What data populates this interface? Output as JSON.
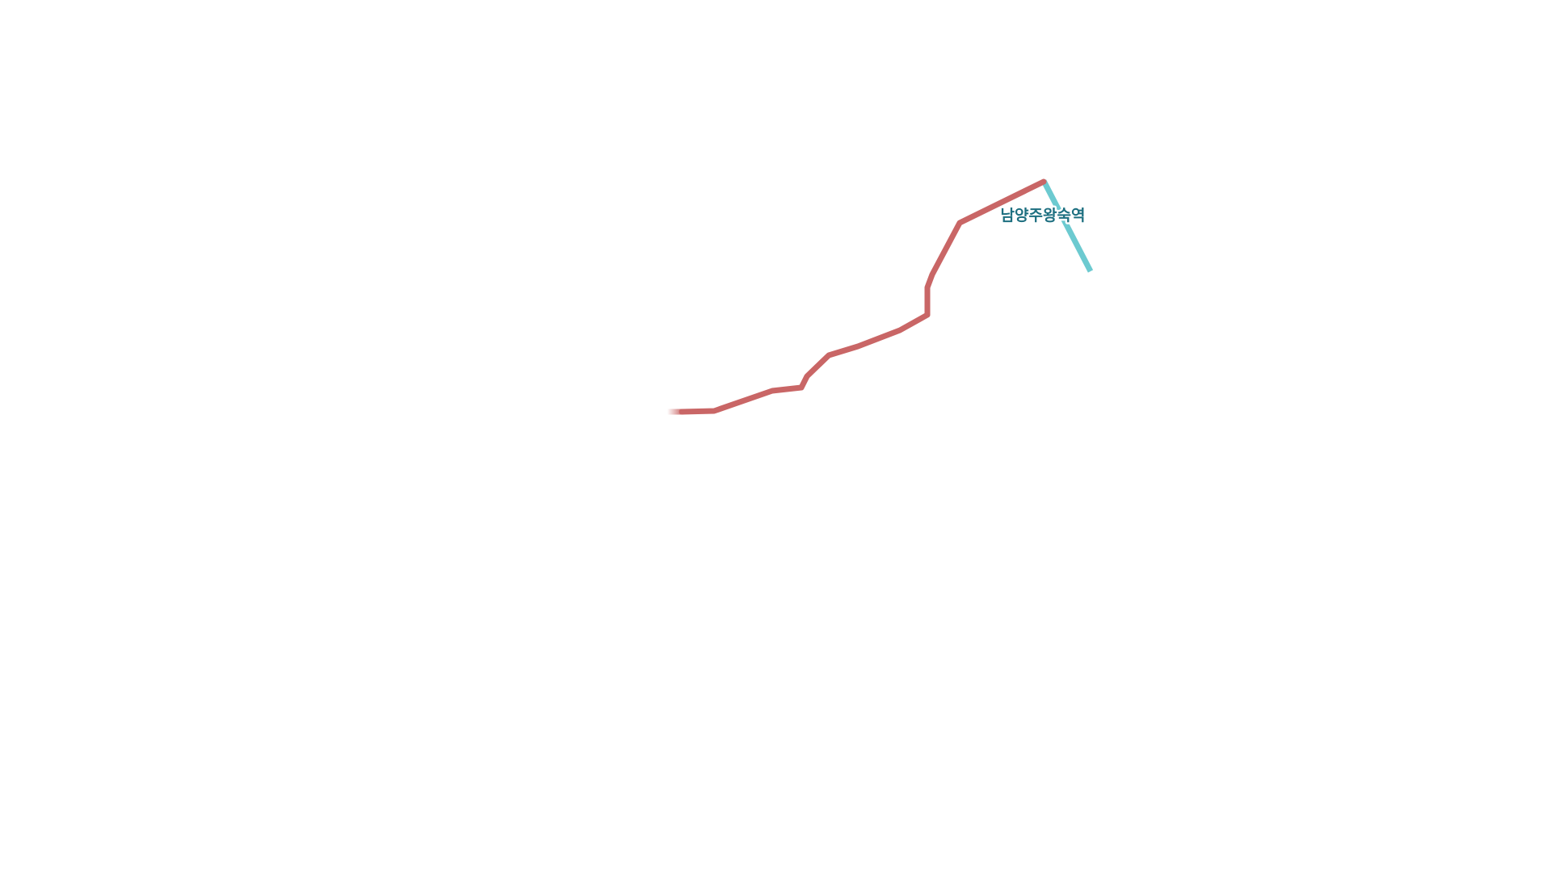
{
  "map": {
    "routes": [
      {
        "name": "",
        "color": "#c96666"
      },
      {
        "name": "",
        "color": "#6ccad0"
      }
    ],
    "stations": [
      {
        "name": "남양주왕숙역",
        "label_color": "#1d6f80"
      }
    ]
  }
}
